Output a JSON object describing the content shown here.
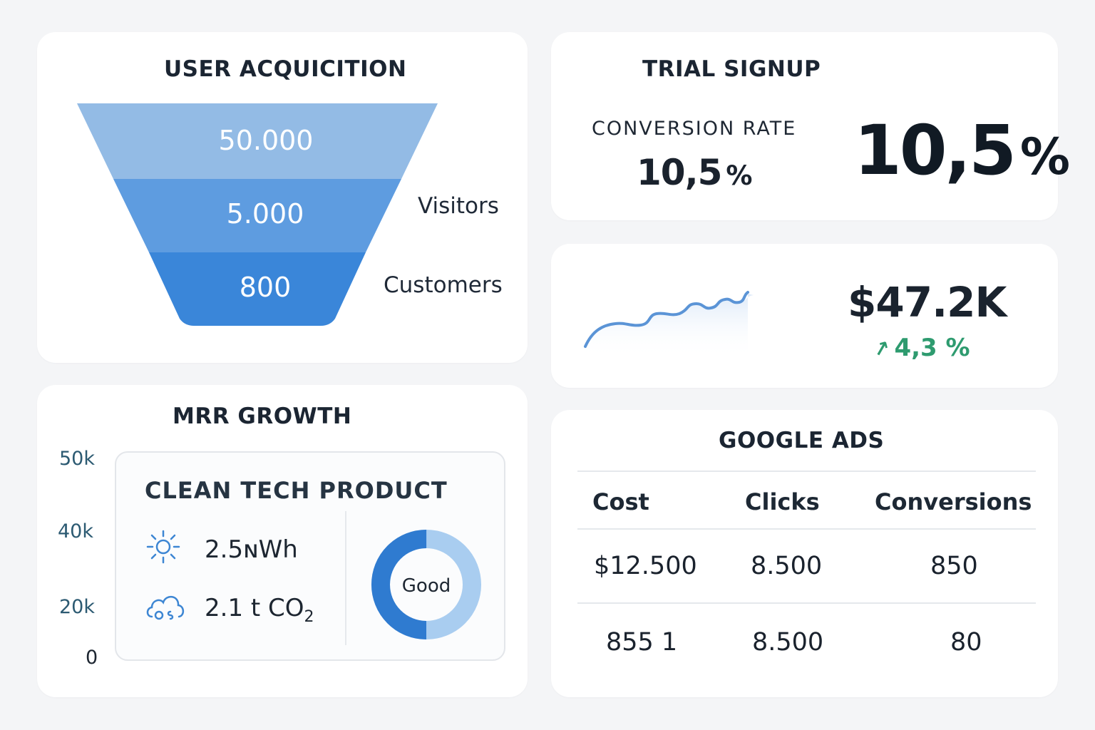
{
  "acquisition": {
    "title": "USER ACQUICITION",
    "funnel": [
      {
        "value": "50.000",
        "color": "#93bbe5"
      },
      {
        "value": "5.000",
        "color": "#5e9ce0"
      },
      {
        "value": "800",
        "color": "#3a86d9"
      }
    ],
    "labels": [
      "Visitors",
      "Customers"
    ]
  },
  "trial": {
    "title": "TRIAL SIGNUP",
    "conversion_label": "CONVERSION RATE",
    "rate_small": "10,5",
    "rate_big": "10,5",
    "unit": "%"
  },
  "revenue": {
    "value": "$47.2K",
    "change": "4,3 %",
    "change_icon": "trend-up-icon",
    "accent": "#2e9b6f",
    "sparkline_color": "#5b94d6"
  },
  "mrr": {
    "title": "MRR GROWTH",
    "y_ticks": [
      "50k",
      "40k",
      "20k",
      "0"
    ],
    "panel": {
      "title": "CLEAN TECH PRODUCT",
      "energy": {
        "icon": "sun-icon",
        "value": "2.5",
        "unit": "ɴWh"
      },
      "carbon": {
        "icon": "cloud-icon",
        "value": "2.1 t CO",
        "sub": "2"
      },
      "donut": {
        "label": "Good",
        "fraction": 0.5,
        "primary": "#2f7bd0",
        "secondary": "#a9cdf0"
      }
    }
  },
  "ads": {
    "title": "GOOGLE ADS",
    "columns": [
      "Cost",
      "Clicks",
      "Conversions"
    ],
    "rows": [
      [
        "$12.500",
        "8.500",
        "850"
      ],
      [
        "855 1",
        "8.500",
        "80"
      ]
    ]
  }
}
